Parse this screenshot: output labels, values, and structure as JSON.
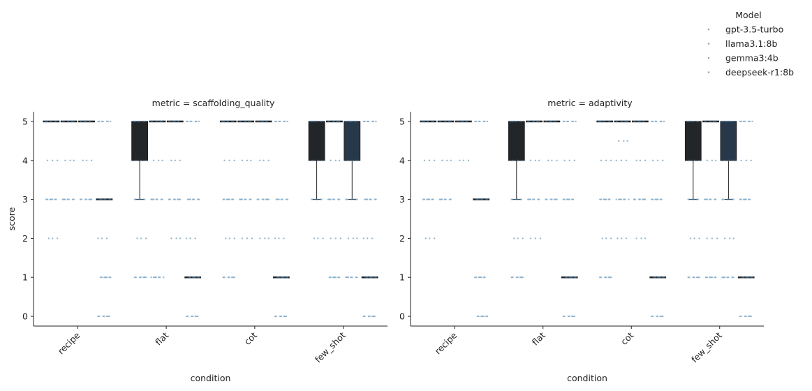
{
  "chart_data": {
    "type": "box",
    "legend": {
      "title": "Model",
      "placement": "top-right",
      "entries": [
        "gpt-3.5-turbo",
        "llama3.1:8b",
        "gemma3:4b",
        "deepseek-r1:8b"
      ]
    },
    "colors": {
      "gpt-3.5-turbo": "#232629",
      "llama3.1:8b": "#262b33",
      "gemma3:4b": "#27384a",
      "deepseek-r1:8b": "#2d5e80",
      "points": "#3f7fb0"
    },
    "xlabel": "condition",
    "ylabel": "score",
    "categories": [
      "recipe",
      "flat",
      "cot",
      "few_shot"
    ],
    "y_ticks": [
      0,
      1,
      2,
      3,
      4,
      5
    ],
    "ylim": [
      -0.25,
      5.25
    ],
    "grid": false,
    "panels": [
      {
        "title": "metric = scaffolding_quality",
        "boxes": {
          "recipe": [
            {
              "model": "gpt-3.5-turbo",
              "q1": 5,
              "median": 5,
              "q3": 5,
              "whisker_low": 5,
              "whisker_high": 5
            },
            {
              "model": "llama3.1:8b",
              "q1": 5,
              "median": 5,
              "q3": 5,
              "whisker_low": 5,
              "whisker_high": 5
            },
            {
              "model": "gemma3:4b",
              "q1": 5,
              "median": 5,
              "q3": 5,
              "whisker_low": 5,
              "whisker_high": 5
            },
            {
              "model": "deepseek-r1:8b",
              "q1": 3,
              "median": 3,
              "q3": 3,
              "whisker_low": 3,
              "whisker_high": 3
            }
          ],
          "flat": [
            {
              "model": "gpt-3.5-turbo",
              "q1": 4,
              "median": 5,
              "q3": 5,
              "whisker_low": 3,
              "whisker_high": 5
            },
            {
              "model": "llama3.1:8b",
              "q1": 5,
              "median": 5,
              "q3": 5,
              "whisker_low": 5,
              "whisker_high": 5
            },
            {
              "model": "gemma3:4b",
              "q1": 5,
              "median": 5,
              "q3": 5,
              "whisker_low": 5,
              "whisker_high": 5
            },
            {
              "model": "deepseek-r1:8b",
              "q1": 1,
              "median": 1,
              "q3": 1,
              "whisker_low": 1,
              "whisker_high": 1
            }
          ],
          "cot": [
            {
              "model": "gpt-3.5-turbo",
              "q1": 5,
              "median": 5,
              "q3": 5,
              "whisker_low": 5,
              "whisker_high": 5
            },
            {
              "model": "llama3.1:8b",
              "q1": 5,
              "median": 5,
              "q3": 5,
              "whisker_low": 5,
              "whisker_high": 5
            },
            {
              "model": "gemma3:4b",
              "q1": 5,
              "median": 5,
              "q3": 5,
              "whisker_low": 5,
              "whisker_high": 5
            },
            {
              "model": "deepseek-r1:8b",
              "q1": 1,
              "median": 1,
              "q3": 1,
              "whisker_low": 1,
              "whisker_high": 1
            }
          ],
          "few_shot": [
            {
              "model": "gpt-3.5-turbo",
              "q1": 4,
              "median": 5,
              "q3": 5,
              "whisker_low": 3,
              "whisker_high": 5
            },
            {
              "model": "llama3.1:8b",
              "q1": 5,
              "median": 5,
              "q3": 5,
              "whisker_low": 5,
              "whisker_high": 5
            },
            {
              "model": "gemma3:4b",
              "q1": 4,
              "median": 5,
              "q3": 5,
              "whisker_low": 3,
              "whisker_high": 5
            },
            {
              "model": "deepseek-r1:8b",
              "q1": 1,
              "median": 1,
              "q3": 1,
              "whisker_low": 1,
              "whisker_high": 1
            }
          ]
        },
        "points": {
          "recipe": [
            [
              5,
              4,
              3,
              2
            ],
            [
              5,
              4,
              3
            ],
            [
              5,
              4,
              3
            ],
            [
              5,
              3,
              2,
              1,
              0
            ]
          ],
          "flat": [
            [
              5,
              4,
              3,
              2,
              1
            ],
            [
              5,
              4,
              3,
              1
            ],
            [
              5,
              4,
              3,
              2
            ],
            [
              5,
              3,
              2,
              1,
              0
            ]
          ],
          "cot": [
            [
              5,
              4,
              3,
              2,
              1
            ],
            [
              5,
              4,
              3,
              2
            ],
            [
              5,
              4,
              3,
              2
            ],
            [
              5,
              3,
              2,
              1,
              0
            ]
          ],
          "few_shot": [
            [
              5,
              4,
              3,
              2
            ],
            [
              5,
              4,
              3,
              2,
              1
            ],
            [
              5,
              4,
              3,
              2,
              1
            ],
            [
              5,
              3,
              2,
              1,
              0
            ]
          ]
        }
      },
      {
        "title": "metric = adaptivity",
        "boxes": {
          "recipe": [
            {
              "model": "gpt-3.5-turbo",
              "q1": 5,
              "median": 5,
              "q3": 5,
              "whisker_low": 5,
              "whisker_high": 5
            },
            {
              "model": "llama3.1:8b",
              "q1": 5,
              "median": 5,
              "q3": 5,
              "whisker_low": 5,
              "whisker_high": 5
            },
            {
              "model": "gemma3:4b",
              "q1": 5,
              "median": 5,
              "q3": 5,
              "whisker_low": 5,
              "whisker_high": 5
            },
            {
              "model": "deepseek-r1:8b",
              "q1": 3,
              "median": 3,
              "q3": 3,
              "whisker_low": 3,
              "whisker_high": 3
            }
          ],
          "flat": [
            {
              "model": "gpt-3.5-turbo",
              "q1": 4,
              "median": 5,
              "q3": 5,
              "whisker_low": 3,
              "whisker_high": 5
            },
            {
              "model": "llama3.1:8b",
              "q1": 5,
              "median": 5,
              "q3": 5,
              "whisker_low": 5,
              "whisker_high": 5
            },
            {
              "model": "gemma3:4b",
              "q1": 5,
              "median": 5,
              "q3": 5,
              "whisker_low": 5,
              "whisker_high": 5
            },
            {
              "model": "deepseek-r1:8b",
              "q1": 1,
              "median": 1,
              "q3": 1,
              "whisker_low": 1,
              "whisker_high": 1
            }
          ],
          "cot": [
            {
              "model": "gpt-3.5-turbo",
              "q1": 5,
              "median": 5,
              "q3": 5,
              "whisker_low": 5,
              "whisker_high": 5
            },
            {
              "model": "llama3.1:8b",
              "q1": 5,
              "median": 5,
              "q3": 5,
              "whisker_low": 5,
              "whisker_high": 5
            },
            {
              "model": "gemma3:4b",
              "q1": 5,
              "median": 5,
              "q3": 5,
              "whisker_low": 5,
              "whisker_high": 5
            },
            {
              "model": "deepseek-r1:8b",
              "q1": 1,
              "median": 1,
              "q3": 1,
              "whisker_low": 1,
              "whisker_high": 1
            }
          ],
          "few_shot": [
            {
              "model": "gpt-3.5-turbo",
              "q1": 4,
              "median": 5,
              "q3": 5,
              "whisker_low": 3,
              "whisker_high": 5
            },
            {
              "model": "llama3.1:8b",
              "q1": 5,
              "median": 5,
              "q3": 5,
              "whisker_low": 5,
              "whisker_high": 5
            },
            {
              "model": "gemma3:4b",
              "q1": 4,
              "median": 5,
              "q3": 5,
              "whisker_low": 3,
              "whisker_high": 5
            },
            {
              "model": "deepseek-r1:8b",
              "q1": 1,
              "median": 1,
              "q3": 1,
              "whisker_low": 1,
              "whisker_high": 1
            }
          ]
        },
        "points": {
          "recipe": [
            [
              5,
              4,
              3,
              2
            ],
            [
              5,
              4,
              3
            ],
            [
              5,
              4
            ],
            [
              5,
              3,
              1,
              0
            ]
          ],
          "flat": [
            [
              5,
              4,
              3,
              2,
              1
            ],
            [
              5,
              4,
              3,
              2
            ],
            [
              5,
              4,
              3
            ],
            [
              5,
              4,
              3,
              1,
              0
            ]
          ],
          "cot": [
            [
              5,
              4,
              3,
              2,
              1
            ],
            [
              5,
              4.5,
              4,
              3,
              2
            ],
            [
              5,
              4,
              3,
              2
            ],
            [
              5,
              4,
              3,
              1,
              0
            ]
          ],
          "few_shot": [
            [
              5,
              4,
              3,
              2,
              1
            ],
            [
              5,
              4,
              3,
              2,
              1
            ],
            [
              5,
              4,
              3,
              2,
              1
            ],
            [
              5,
              4,
              3,
              1,
              0
            ]
          ]
        }
      }
    ]
  }
}
